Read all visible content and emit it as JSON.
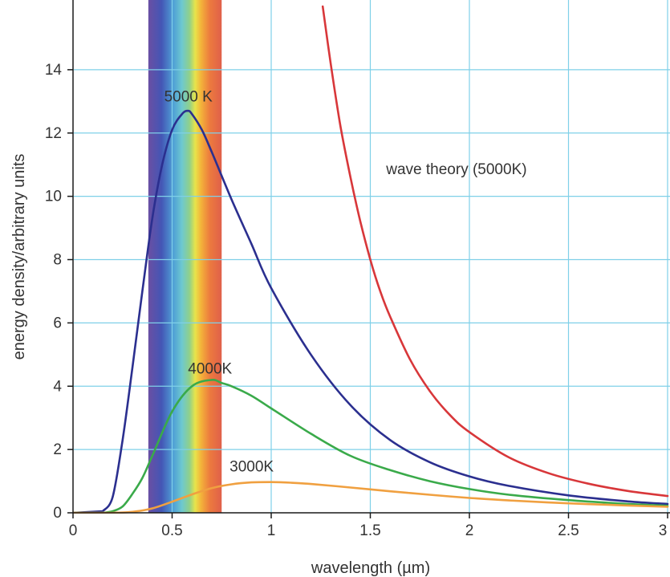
{
  "chart_data": {
    "type": "line",
    "title": "",
    "xlabel": "wavelength (µm)",
    "ylabel": "energy density/arbitrary units",
    "xlim": [
      0,
      3
    ],
    "ylim": [
      0,
      16
    ],
    "xticks": [
      0,
      0.5,
      1,
      1.5,
      2,
      2.5,
      3
    ],
    "xtick_labels": [
      "0",
      "0.5",
      "1",
      "1.5",
      "2",
      "2.5",
      "3"
    ],
    "yticks": [
      0,
      2,
      4,
      6,
      8,
      10,
      12,
      14
    ],
    "ytick_labels": [
      "0",
      "2",
      "4",
      "6",
      "8",
      "10",
      "12",
      "14"
    ],
    "grid": true,
    "visible_spectrum_band": {
      "x_start": 0.38,
      "x_end": 0.75
    },
    "series": [
      {
        "label": "5000 K",
        "color": "#2b2f8f",
        "x": [
          0.15,
          0.2,
          0.25,
          0.3,
          0.35,
          0.4,
          0.45,
          0.5,
          0.55,
          0.58,
          0.6,
          0.65,
          0.7,
          0.8,
          0.9,
          1.0,
          1.2,
          1.4,
          1.6,
          1.8,
          2.0,
          2.2,
          2.5,
          2.8,
          3.0
        ],
        "y": [
          0.05,
          0.5,
          2.3,
          4.6,
          7.0,
          9.3,
          11.0,
          12.1,
          12.6,
          12.7,
          12.6,
          12.1,
          11.4,
          9.9,
          8.5,
          7.1,
          5.0,
          3.4,
          2.3,
          1.6,
          1.15,
          0.85,
          0.55,
          0.36,
          0.28
        ]
      },
      {
        "label": "4000 K",
        "color": "#3aaa4a",
        "x": [
          0.15,
          0.2,
          0.25,
          0.3,
          0.35,
          0.4,
          0.5,
          0.6,
          0.7,
          0.75,
          0.8,
          0.9,
          1.0,
          1.2,
          1.4,
          1.6,
          1.8,
          2.0,
          2.2,
          2.5,
          2.8,
          3.0
        ],
        "y": [
          0.0,
          0.05,
          0.2,
          0.6,
          1.1,
          1.8,
          3.2,
          4.0,
          4.2,
          4.1,
          4.0,
          3.7,
          3.3,
          2.5,
          1.8,
          1.35,
          1.0,
          0.75,
          0.57,
          0.4,
          0.28,
          0.22
        ]
      },
      {
        "label": "3000 K",
        "color": "#f0a040",
        "x": [
          0.2,
          0.3,
          0.4,
          0.5,
          0.6,
          0.7,
          0.8,
          0.9,
          1.0,
          1.1,
          1.2,
          1.4,
          1.6,
          1.8,
          2.0,
          2.2,
          2.5,
          2.8,
          3.0
        ],
        "y": [
          0.0,
          0.03,
          0.14,
          0.35,
          0.58,
          0.78,
          0.9,
          0.96,
          0.97,
          0.95,
          0.91,
          0.8,
          0.68,
          0.57,
          0.47,
          0.39,
          0.3,
          0.23,
          0.19
        ]
      },
      {
        "label": "wave theory (5000K)",
        "color": "#d8373a",
        "x": [
          1.26,
          1.3,
          1.35,
          1.4,
          1.45,
          1.5,
          1.55,
          1.6,
          1.7,
          1.8,
          1.9,
          2.0,
          2.2,
          2.4,
          2.6,
          2.8,
          3.0
        ],
        "y": [
          16.0,
          14.2,
          12.2,
          10.6,
          9.2,
          8.0,
          7.0,
          6.2,
          4.85,
          3.85,
          3.1,
          2.55,
          1.75,
          1.25,
          0.92,
          0.69,
          0.53
        ]
      }
    ],
    "annotations": [
      {
        "text": "5000 K",
        "x": 0.46,
        "y": 13.0
      },
      {
        "text": "4000K",
        "x": 0.58,
        "y": 4.4
      },
      {
        "text": "3000K",
        "x": 0.79,
        "y": 1.3
      },
      {
        "text": "wave theory (5000K)",
        "x": 1.58,
        "y": 10.7
      }
    ]
  }
}
